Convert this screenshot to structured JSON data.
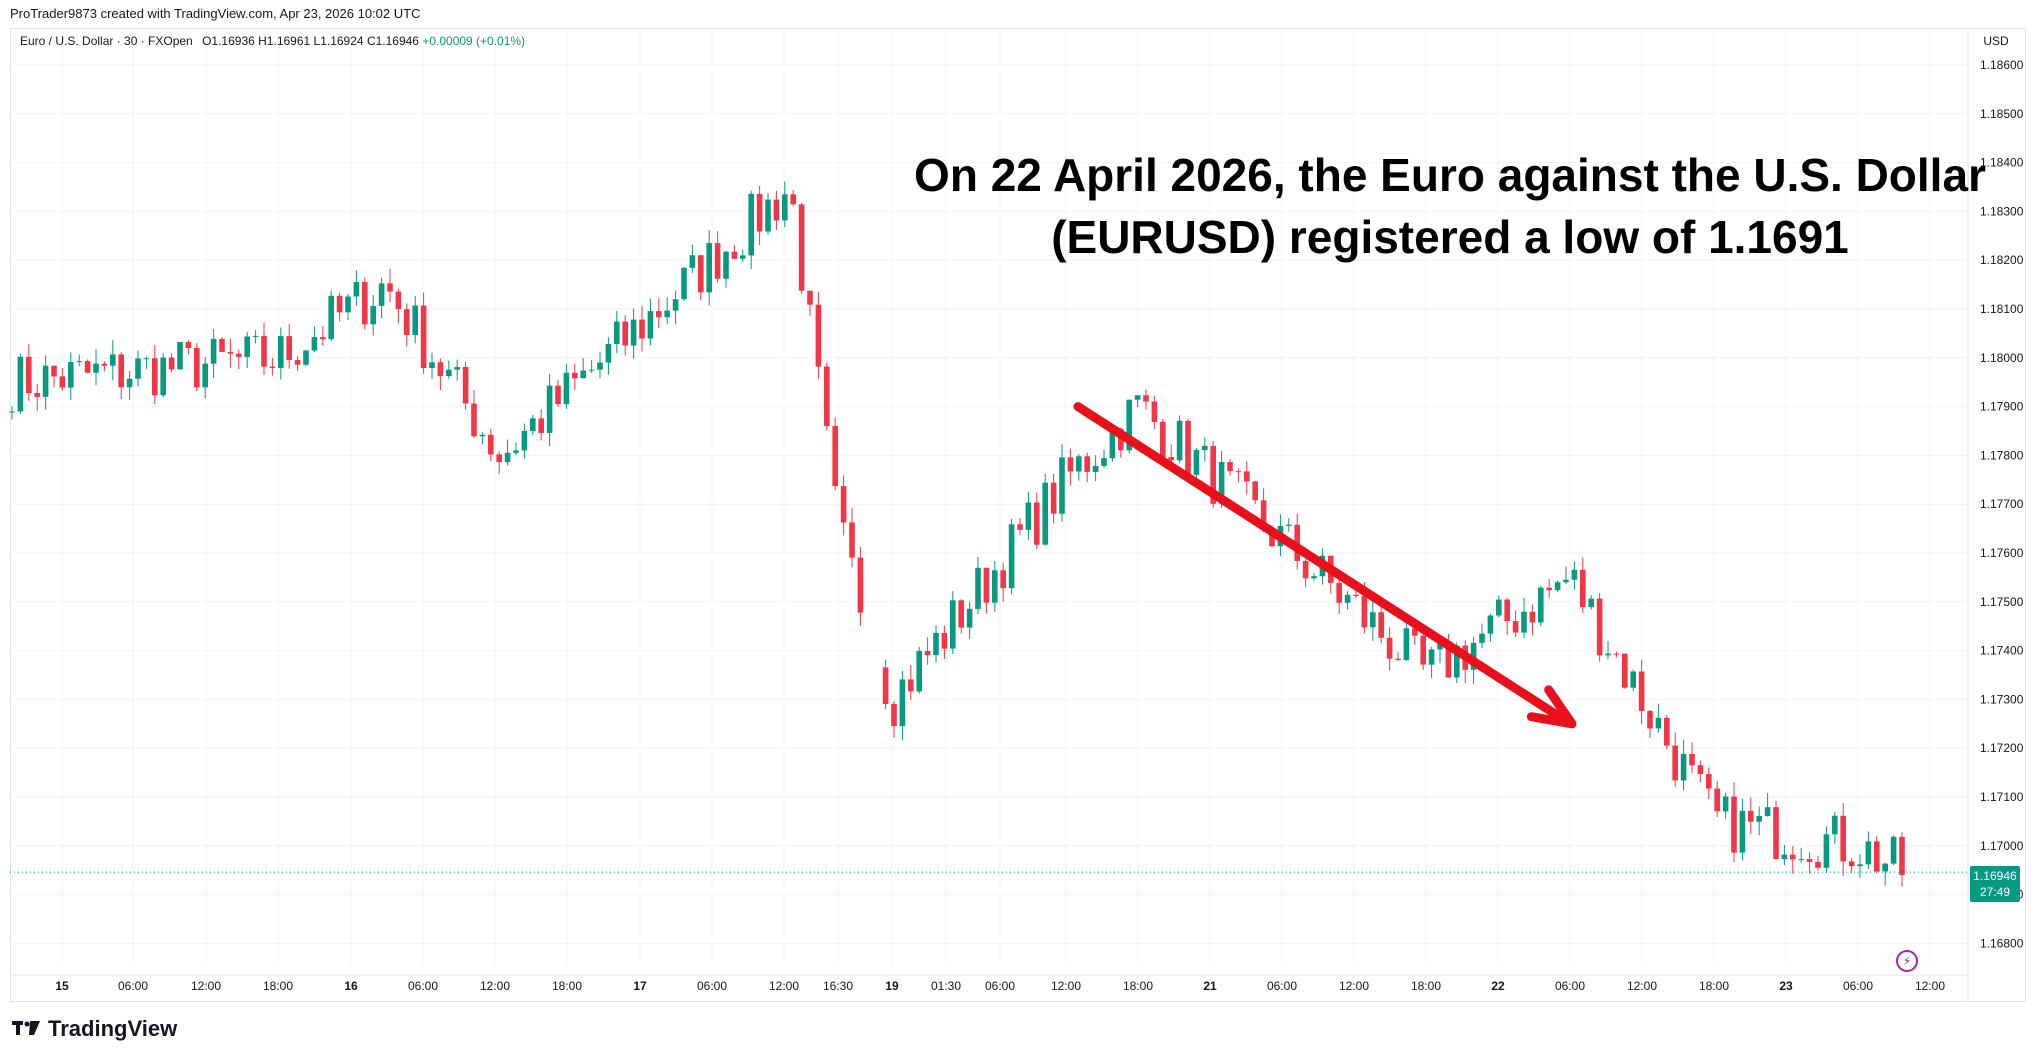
{
  "attribution": "ProTrader9873 created with TradingView.com, Apr 23, 2026 10:02 UTC",
  "legend": {
    "symbol": "Euro / U.S. Dollar · 30 · FXOpen",
    "open": "O1.16936",
    "high": "H1.16961",
    "low": "L1.16924",
    "close": "C1.16946",
    "change": "+0.00009 (+0.01%)"
  },
  "currency_label": "USD",
  "annotation_line1": "On 22 April 2026, the Euro against the U.S. Dollar",
  "annotation_line2": "(EURUSD) registered a low of 1.1691",
  "brand": "TradingView",
  "last_price": {
    "price": "1.16946",
    "countdown": "27:49"
  },
  "colors": {
    "up": "#089981",
    "down": "#f23645",
    "arrow": "#e8101b",
    "grid": "#f0f3fa"
  },
  "icons": [
    "tradingview-logo-icon",
    "lightning-icon"
  ],
  "chart_data": {
    "type": "candlestick",
    "symbol": "EURUSD",
    "timeframe": "30",
    "ylim": [
      1.1675,
      1.1865
    ],
    "y_ticks": [
      "1.18600",
      "1.18500",
      "1.18400",
      "1.18300",
      "1.18200",
      "1.18100",
      "1.18000",
      "1.17900",
      "1.17800",
      "1.17700",
      "1.17600",
      "1.17500",
      "1.17400",
      "1.17300",
      "1.17200",
      "1.17100",
      "1.17000",
      "1.16900",
      "1.16800"
    ],
    "x_ticks": [
      "15",
      "06:00",
      "12:00",
      "18:00",
      "16",
      "06:00",
      "12:00",
      "18:00",
      "17",
      "06:00",
      "12:00",
      "16:30",
      "19",
      "01:30",
      "06:00",
      "12:00",
      "18:00",
      "21",
      "06:00",
      "12:00",
      "18:00",
      "22",
      "06:00",
      "12:00",
      "18:00",
      "23",
      "06:00",
      "12:00"
    ],
    "last_close": 1.16946,
    "key_points": [
      {
        "time": "Apr 15 00:00",
        "price": 1.1795
      },
      {
        "time": "Apr 15 18:00",
        "price": 1.18
      },
      {
        "time": "Apr 16 02:00",
        "price": 1.1815
      },
      {
        "time": "Apr 16 12:00",
        "price": 1.178
      },
      {
        "time": "Apr 17 12:00",
        "price": 1.1835
      },
      {
        "time": "Apr 17 16:30",
        "price": 1.1765
      },
      {
        "time": "Apr 19 00:00",
        "price": 1.173
      },
      {
        "time": "Apr 20 12:00",
        "price": 1.1775
      },
      {
        "time": "Apr 20 18:00",
        "price": 1.179
      },
      {
        "time": "Apr 21 18:00",
        "price": 1.1735
      },
      {
        "time": "Apr 22 06:00",
        "price": 1.1755
      },
      {
        "time": "Apr 22 18:00",
        "price": 1.1705
      },
      {
        "time": "Apr 23 06:00",
        "price": 1.17
      },
      {
        "time": "Apr 23 10:00",
        "price": 1.16946
      }
    ],
    "trend_arrow": {
      "from": {
        "time": "Apr 20 12:00",
        "price": 1.179
      },
      "to": {
        "time": "Apr 22 06:00",
        "price": 1.1725
      }
    },
    "last_price_line": 1.16946
  }
}
